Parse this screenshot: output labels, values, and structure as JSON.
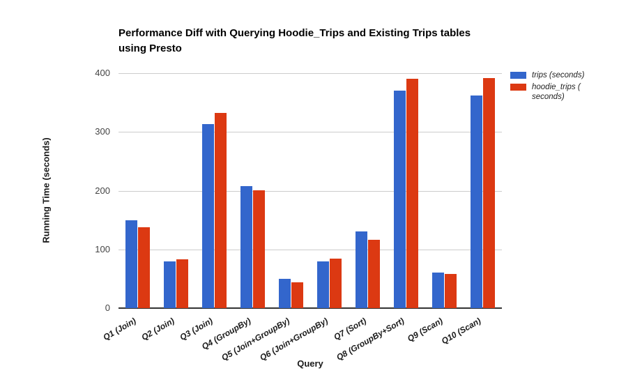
{
  "chart_data": {
    "type": "bar",
    "title": "Performance Diff with Querying Hoodie_Trips and Existing Trips tables using Presto",
    "title_lines": [
      "Performance Diff with Querying Hoodie_Trips and Existing Trips tables",
      "using Presto"
    ],
    "xlabel": "Query",
    "ylabel": "Running Time (seconds)",
    "categories": [
      "Q1 (Join)",
      "Q2 (Join)",
      "Q3 (Join)",
      "Q4 (GroupBy)",
      "Q5 (Join+GroupBy)",
      "Q6 (Join+GroupBy)",
      "Q7 (Sort)",
      "Q8 (GroupBy+Sort)",
      "Q9 (Scan)",
      "Q10 (Scan)"
    ],
    "series": [
      {
        "name": "trips (seconds)",
        "color": "#3366CC",
        "values": [
          150,
          80,
          313,
          208,
          50,
          80,
          130,
          370,
          60,
          362
        ]
      },
      {
        "name": "hoodie_trips ( seconds)",
        "color": "#DC3912",
        "values": [
          138,
          83,
          332,
          201,
          44,
          84,
          116,
          390,
          58,
          392
        ]
      }
    ],
    "ylim": [
      0,
      400
    ],
    "yticks": [
      0,
      100,
      200,
      300,
      400
    ],
    "grid": true,
    "legend_position": "right"
  },
  "colors": {
    "grid": "#CCCCCC",
    "axis_line": "#333333",
    "title_text": "#000000",
    "tick_text": "#444444",
    "label_text": "#1A1A1A"
  }
}
